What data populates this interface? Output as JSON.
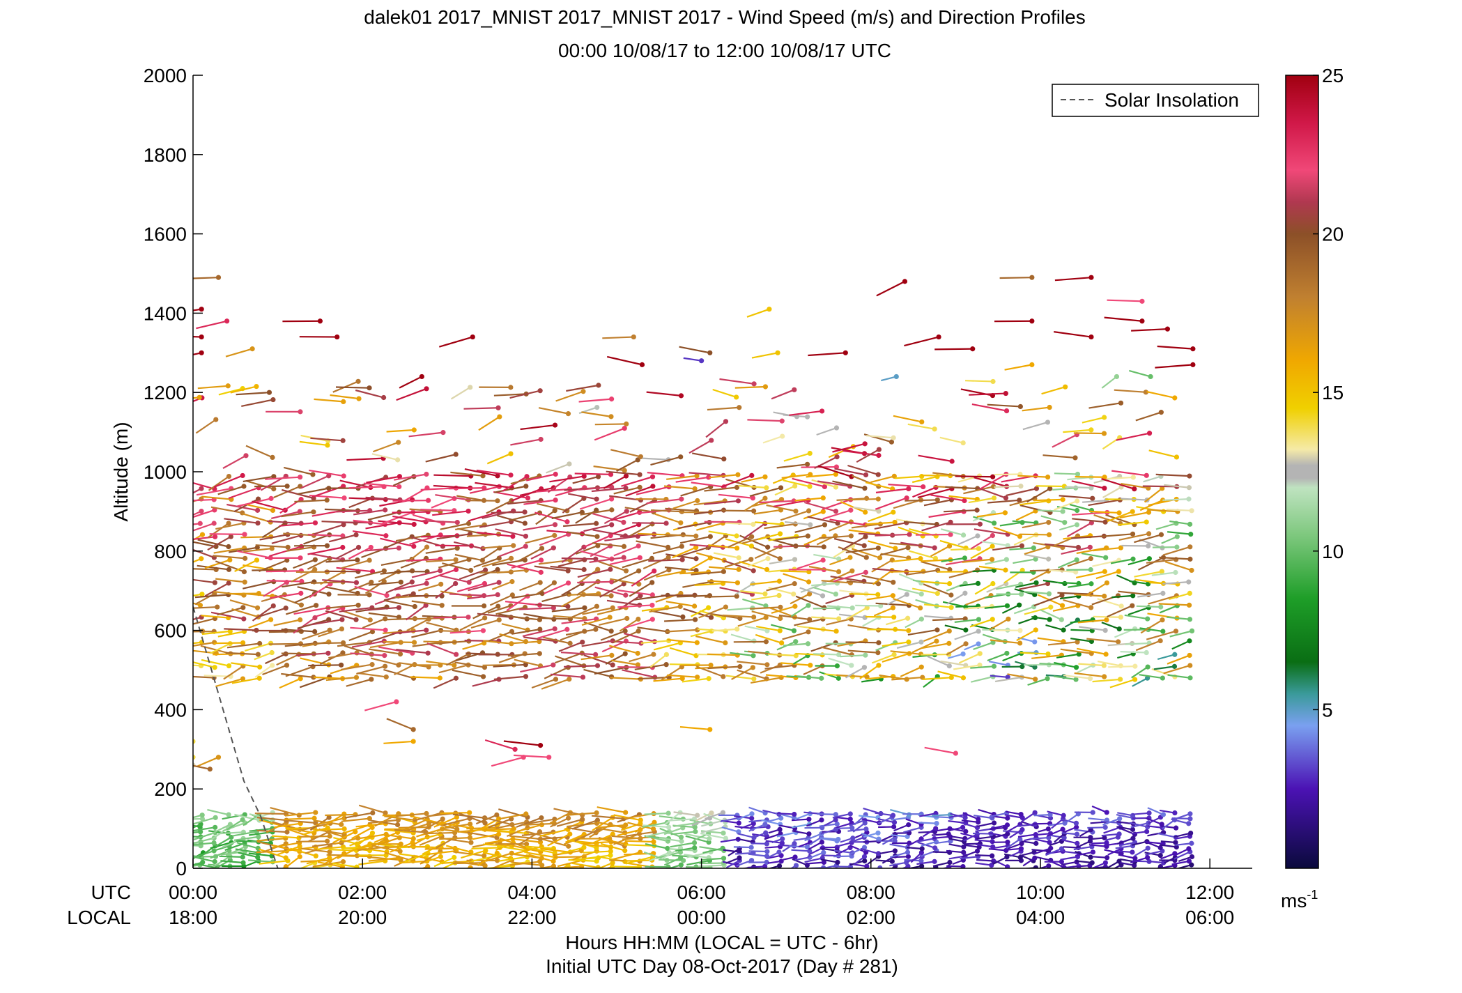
{
  "figure": {
    "title_line1": "dalek01 2017_MNIST 2017_MNIST 2017 - Wind Speed (m/s) and Direction Profiles",
    "title_line2": "00:00 10/08/17 to 12:00 10/08/17  UTC",
    "xlabel_line1": "Hours HH:MM  (LOCAL = UTC - 6hr)",
    "xlabel_line2": "Initial UTC Day 08-Oct-2017 (Day # 281)",
    "ylabel": "Altitude (m)",
    "utc_label": "UTC",
    "local_label": "LOCAL",
    "legend_label": "Solar Insolation",
    "colorbar_unit": "ms",
    "colorbar_unit_exp": "-1"
  },
  "chart_data": {
    "type": "scatter",
    "title": "dalek01 2017_MNIST 2017_MNIST 2017 - Wind Speed (m/s) and Direction Profiles",
    "subtitle": "00:00 10/08/17 to 12:00 10/08/17  UTC",
    "xlabel": "Hours HH:MM  (LOCAL = UTC - 6hr)",
    "ylabel": "Altitude (m)",
    "xlim": [
      0,
      12.5
    ],
    "ylim": [
      0,
      2000
    ],
    "yticks": [
      0,
      200,
      400,
      600,
      800,
      1000,
      1200,
      1400,
      1600,
      1800,
      2000
    ],
    "xticks_hours": [
      0,
      2,
      4,
      6,
      8,
      10,
      12
    ],
    "xticks_utc": [
      "00:00",
      "02:00",
      "04:00",
      "06:00",
      "08:00",
      "10:00",
      "12:00"
    ],
    "xticks_local": [
      "18:00",
      "20:00",
      "22:00",
      "00:00",
      "02:00",
      "04:00",
      "06:00"
    ],
    "colorbar": {
      "min": 0,
      "max": 25,
      "ticks": [
        5,
        10,
        15,
        20,
        25
      ],
      "stops": [
        {
          "v": 0,
          "color": "#0a0a3c"
        },
        {
          "v": 2.5,
          "color": "#4b12b4"
        },
        {
          "v": 4.5,
          "color": "#7aa0f0"
        },
        {
          "v": 5.5,
          "color": "#3a9a9a"
        },
        {
          "v": 6.5,
          "color": "#0a6e14"
        },
        {
          "v": 8.5,
          "color": "#1e9e28"
        },
        {
          "v": 10.5,
          "color": "#7ec87e"
        },
        {
          "v": 12,
          "color": "#bfe3c0"
        },
        {
          "v": 12.3,
          "color": "#b4b4b4"
        },
        {
          "v": 12.7,
          "color": "#b4b4b4"
        },
        {
          "v": 13.2,
          "color": "#f5eaa8"
        },
        {
          "v": 14.5,
          "color": "#f0d000"
        },
        {
          "v": 16,
          "color": "#f0a800"
        },
        {
          "v": 18,
          "color": "#c08030"
        },
        {
          "v": 20,
          "color": "#8c5028"
        },
        {
          "v": 21,
          "color": "#b03850"
        },
        {
          "v": 22,
          "color": "#f04878"
        },
        {
          "v": 23.5,
          "color": "#d01848"
        },
        {
          "v": 25,
          "color": "#a00010"
        }
      ]
    },
    "solar_insolation": {
      "label": "Solar Insolation",
      "line_style": "dashed",
      "color": "#555555",
      "points": [
        [
          0,
          660
        ],
        [
          0.6,
          220
        ],
        [
          0.8,
          130
        ],
        [
          1.0,
          0
        ]
      ]
    },
    "wind_barbs": {
      "time_step_hours": 0.1667,
      "time_start": 0.1,
      "time_end": 11.85,
      "profile_groups": [
        {
          "name": "lower",
          "alt_min": 5,
          "alt_max": 140,
          "alt_step": 12
        },
        {
          "name": "middle",
          "alt_min": 480,
          "alt_max": 1000,
          "alt_step": 30
        }
      ],
      "speed_by_period": [
        {
          "t0": 0,
          "t1": 1.1,
          "lower": [
            8,
            12
          ],
          "middle": [
            13,
            24
          ]
        },
        {
          "t0": 1.1,
          "t1": 5.6,
          "lower": [
            14,
            19
          ],
          "middle": [
            16,
            24.5
          ]
        },
        {
          "t0": 5.6,
          "t1": 6.4,
          "lower": [
            9,
            13
          ],
          "middle": [
            13,
            23
          ]
        },
        {
          "t0": 6.4,
          "t1": 9.0,
          "lower": [
            1,
            5
          ],
          "middle": [
            8,
            25
          ]
        },
        {
          "t0": 9.0,
          "t1": 12.0,
          "lower": [
            1,
            4
          ],
          "middle": [
            3,
            25
          ]
        }
      ],
      "upper_isolated": [
        {
          "t": 0.1,
          "alt": 1410,
          "spd": 25
        },
        {
          "t": 0.1,
          "alt": 1340,
          "spd": 25
        },
        {
          "t": 0.1,
          "alt": 1300,
          "spd": 25
        },
        {
          "t": 0.3,
          "alt": 1490,
          "spd": 19
        },
        {
          "t": 0.4,
          "alt": 1380,
          "spd": 23
        },
        {
          "t": 0.7,
          "alt": 1310,
          "spd": 17
        },
        {
          "t": 0.9,
          "alt": 1200,
          "spd": 20
        },
        {
          "t": 1.5,
          "alt": 1380,
          "spd": 25
        },
        {
          "t": 1.7,
          "alt": 1340,
          "spd": 25
        },
        {
          "t": 2.7,
          "alt": 1240,
          "spd": 25
        },
        {
          "t": 3.3,
          "alt": 1340,
          "spd": 25
        },
        {
          "t": 5.2,
          "alt": 1340,
          "spd": 18
        },
        {
          "t": 5.3,
          "alt": 1270,
          "spd": 25
        },
        {
          "t": 6.1,
          "alt": 1300,
          "spd": 20
        },
        {
          "t": 6.0,
          "alt": 1280,
          "spd": 3
        },
        {
          "t": 6.8,
          "alt": 1410,
          "spd": 15
        },
        {
          "t": 6.9,
          "alt": 1300,
          "spd": 15
        },
        {
          "t": 7.7,
          "alt": 1300,
          "spd": 25
        },
        {
          "t": 8.4,
          "alt": 1480,
          "spd": 25
        },
        {
          "t": 8.8,
          "alt": 1340,
          "spd": 25
        },
        {
          "t": 9.2,
          "alt": 1310,
          "spd": 25
        },
        {
          "t": 9.9,
          "alt": 1490,
          "spd": 19
        },
        {
          "t": 9.9,
          "alt": 1380,
          "spd": 25
        },
        {
          "t": 10.6,
          "alt": 1490,
          "spd": 25
        },
        {
          "t": 10.6,
          "alt": 1340,
          "spd": 25
        },
        {
          "t": 11.2,
          "alt": 1430,
          "spd": 22
        },
        {
          "t": 11.2,
          "alt": 1380,
          "spd": 25
        },
        {
          "t": 11.5,
          "alt": 1360,
          "spd": 25
        },
        {
          "t": 11.8,
          "alt": 1310,
          "spd": 25
        },
        {
          "t": 11.8,
          "alt": 1270,
          "spd": 25
        },
        {
          "t": 9.9,
          "alt": 1270,
          "spd": 16
        },
        {
          "t": 10.9,
          "alt": 1240,
          "spd": 11
        },
        {
          "t": 11.3,
          "alt": 1240,
          "spd": 10
        },
        {
          "t": 8.3,
          "alt": 1240,
          "spd": 5
        }
      ],
      "low_isolated": [
        {
          "t": 0.0,
          "alt": 320,
          "spd": 14
        },
        {
          "t": 0.0,
          "alt": 280,
          "spd": 14
        },
        {
          "t": 0.3,
          "alt": 280,
          "spd": 17
        },
        {
          "t": 0.0,
          "alt": 260,
          "spd": 13
        },
        {
          "t": 0.2,
          "alt": 250,
          "spd": 19
        },
        {
          "t": 2.4,
          "alt": 420,
          "spd": 22
        },
        {
          "t": 2.6,
          "alt": 350,
          "spd": 19
        },
        {
          "t": 2.6,
          "alt": 320,
          "spd": 16
        },
        {
          "t": 3.8,
          "alt": 300,
          "spd": 23
        },
        {
          "t": 4.1,
          "alt": 310,
          "spd": 25
        },
        {
          "t": 4.2,
          "alt": 280,
          "spd": 22
        },
        {
          "t": 3.9,
          "alt": 280,
          "spd": 22
        },
        {
          "t": 6.1,
          "alt": 350,
          "spd": 16
        },
        {
          "t": 9.0,
          "alt": 290,
          "spd": 22
        }
      ]
    }
  }
}
